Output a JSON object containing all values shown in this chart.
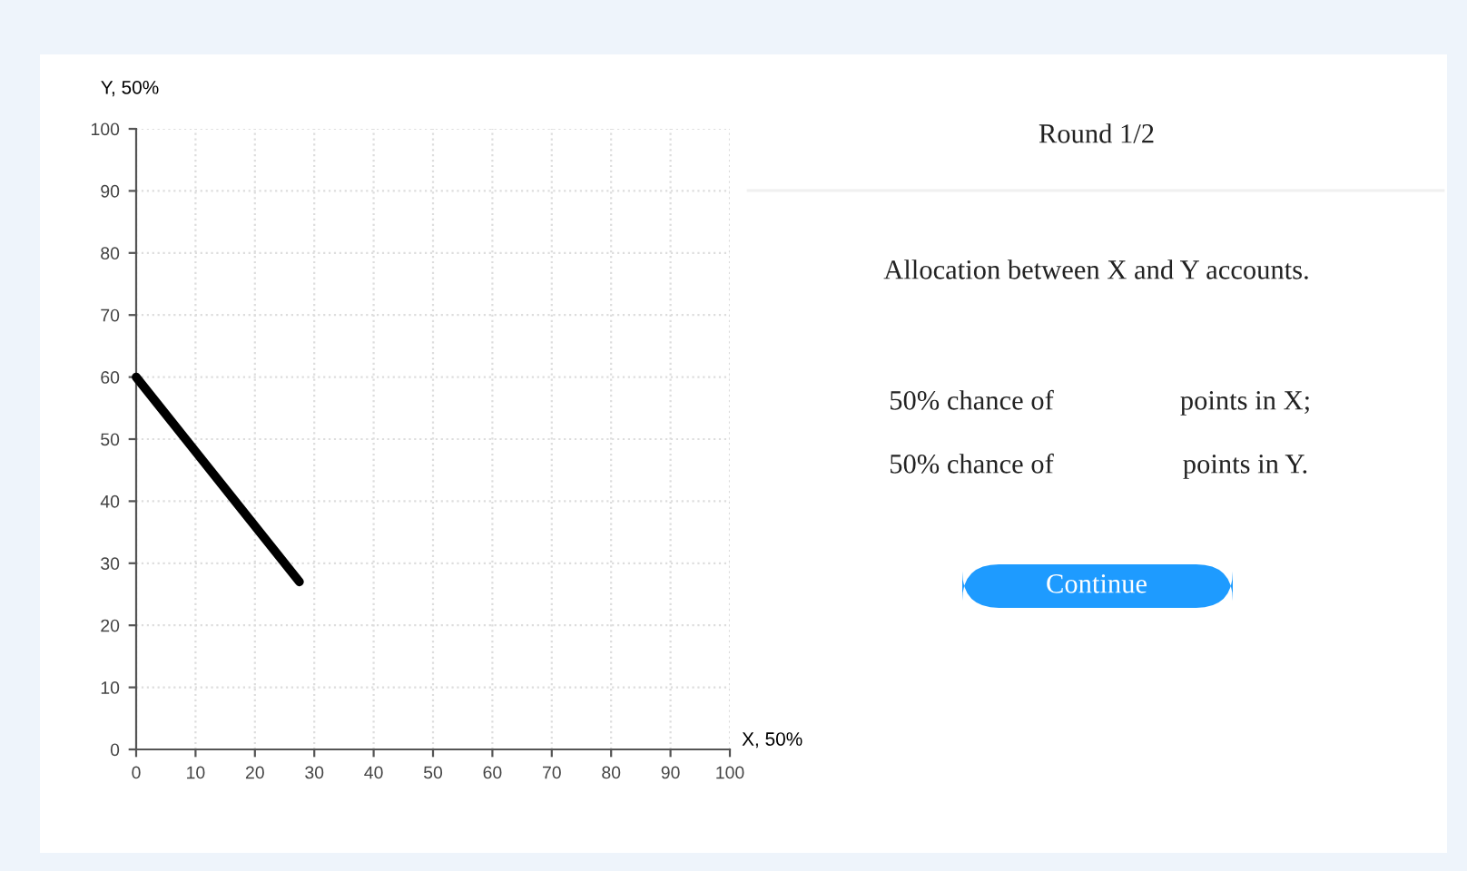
{
  "chart_data": [
    {
      "type": "line",
      "xlabel": "X, 50%",
      "ylabel": "Y, 50%",
      "series": [
        {
          "color": "#000000",
          "x": [
            0,
            27.5
          ],
          "values": [
            60,
            27
          ]
        }
      ],
      "xlim": [
        0,
        100
      ],
      "ylim": [
        0,
        100
      ],
      "xticks": [
        0,
        10,
        20,
        30,
        40,
        50,
        60,
        70,
        80,
        90,
        100
      ],
      "yticks": [
        0,
        10,
        20,
        30,
        40,
        50,
        60,
        70,
        80,
        90,
        100
      ],
      "grid": true,
      "line_style": "solid",
      "marker": "none"
    },
    {
      "type": "other",
      "annotations": [
        "Round 1/2",
        "Allocation between X and Y accounts.",
        "50% chance of",
        "points in X;",
        "50% chance of",
        "points in Y.",
        "Continue"
      ]
    }
  ]
}
